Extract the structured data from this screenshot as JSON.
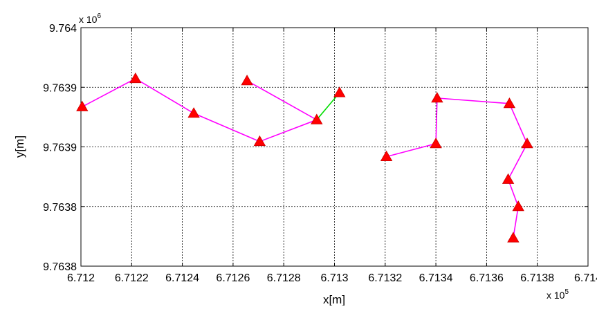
{
  "chart_data": {
    "type": "line",
    "xlabel": "x[m]",
    "ylabel": "y[m]",
    "x_multiplier": "x 10",
    "x_multiplier_exp": "5",
    "y_multiplier": "x 10",
    "y_multiplier_exp": "6",
    "x_scale": 100000,
    "y_scale": 1000000,
    "xlim": [
      671200,
      671400
    ],
    "ylim": [
      9763790,
      9764010
    ],
    "x_ticks": [
      671200,
      671220,
      671240,
      671260,
      671280,
      671300,
      671320,
      671340,
      671360,
      671380,
      671400
    ],
    "x_tick_labels": [
      "6.712",
      "6.7122",
      "6.7124",
      "6.7126",
      "6.7128",
      "6.713",
      "6.7132",
      "6.7134",
      "6.7136",
      "6.7138",
      "6.714"
    ],
    "y_ticks": [
      9763790,
      9763845,
      9763900,
      9763955,
      9764010
    ],
    "y_tick_labels": [
      "9.7638",
      "9.7638",
      "9.7639",
      "9.7639",
      "9.764"
    ],
    "grid": true,
    "marker": "triangle",
    "marker_color": "#ff0000",
    "series": [
      {
        "color": "#ff00ff",
        "points": [
          [
            671200.5,
            9763937
          ],
          [
            671221.5,
            9763963
          ],
          [
            671244.5,
            9763931
          ],
          [
            671270.5,
            9763905
          ],
          [
            671293,
            9763925
          ],
          [
            671265.5,
            9763961
          ]
        ]
      },
      {
        "color": "#00dd00",
        "points": [
          [
            671293,
            9763925
          ],
          [
            671302,
            9763950
          ]
        ]
      },
      {
        "color": "#ff00ff",
        "points": [
          [
            671320.5,
            9763891
          ],
          [
            671340,
            9763903
          ],
          [
            671340.5,
            9763945
          ],
          [
            671369,
            9763940
          ],
          [
            671376,
            9763903
          ],
          [
            671368.5,
            9763870
          ],
          [
            671372.5,
            9763845
          ],
          [
            671370.5,
            9763816
          ]
        ]
      }
    ]
  }
}
